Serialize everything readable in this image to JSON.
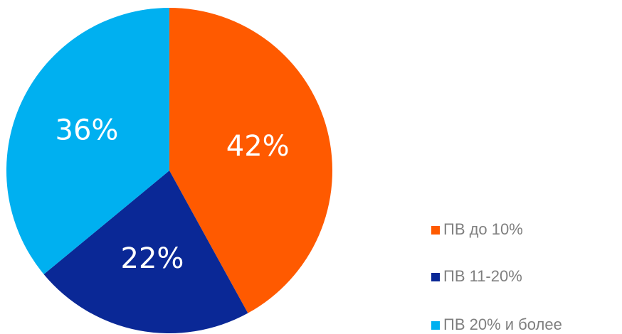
{
  "chart_data": {
    "type": "pie",
    "categories": [
      "ПВ до 10%",
      "ПВ 11-20%",
      "ПВ 20% и более"
    ],
    "values": [
      42,
      22,
      36
    ],
    "value_labels": [
      "42%",
      "22%",
      "36%"
    ],
    "colors": [
      "#ff5a00",
      "#0a2896",
      "#00b0f0"
    ],
    "legend": "bottom-right"
  }
}
